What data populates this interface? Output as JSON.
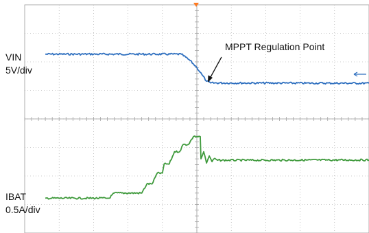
{
  "chart_data": {
    "type": "line",
    "title": "",
    "xlabel": "",
    "ylabel": "",
    "grid": true,
    "divisions": {
      "x": 10,
      "y": 8
    },
    "x_range": [
      0,
      10
    ],
    "y_range": [
      0,
      8
    ],
    "channel_labels": {
      "vin_name": "VIN",
      "vin_scale": "5V/div",
      "ibat_name": "IBAT",
      "ibat_scale": "0.5A/div"
    },
    "annotation": {
      "text": "MPPT Regulation Point",
      "target_series": "VIN",
      "target_x": 5.25
    },
    "series": [
      {
        "name": "VIN",
        "color": "#2e6fbf",
        "x": [
          0.6,
          4.55,
          4.8,
          5.0,
          5.15,
          5.28,
          5.4,
          10.0
        ],
        "y": [
          6.27,
          6.27,
          6.05,
          5.8,
          5.55,
          5.32,
          5.26,
          5.25
        ]
      },
      {
        "name": "IBAT",
        "color": "#3f9a3c",
        "x": [
          0.6,
          2.45,
          2.6,
          3.4,
          3.55,
          3.7,
          3.85,
          4.0,
          4.05,
          4.2,
          4.35,
          4.5,
          4.6,
          4.75,
          4.9,
          5.1,
          5.12,
          5.2,
          5.28,
          5.36,
          5.44,
          5.52,
          5.6,
          10.0
        ],
        "y": [
          1.22,
          1.22,
          1.4,
          1.4,
          1.72,
          1.72,
          2.1,
          2.1,
          2.42,
          2.42,
          2.85,
          2.85,
          3.1,
          3.1,
          3.38,
          3.38,
          2.6,
          2.85,
          2.45,
          2.7,
          2.5,
          2.62,
          2.55,
          2.56
        ]
      }
    ]
  }
}
